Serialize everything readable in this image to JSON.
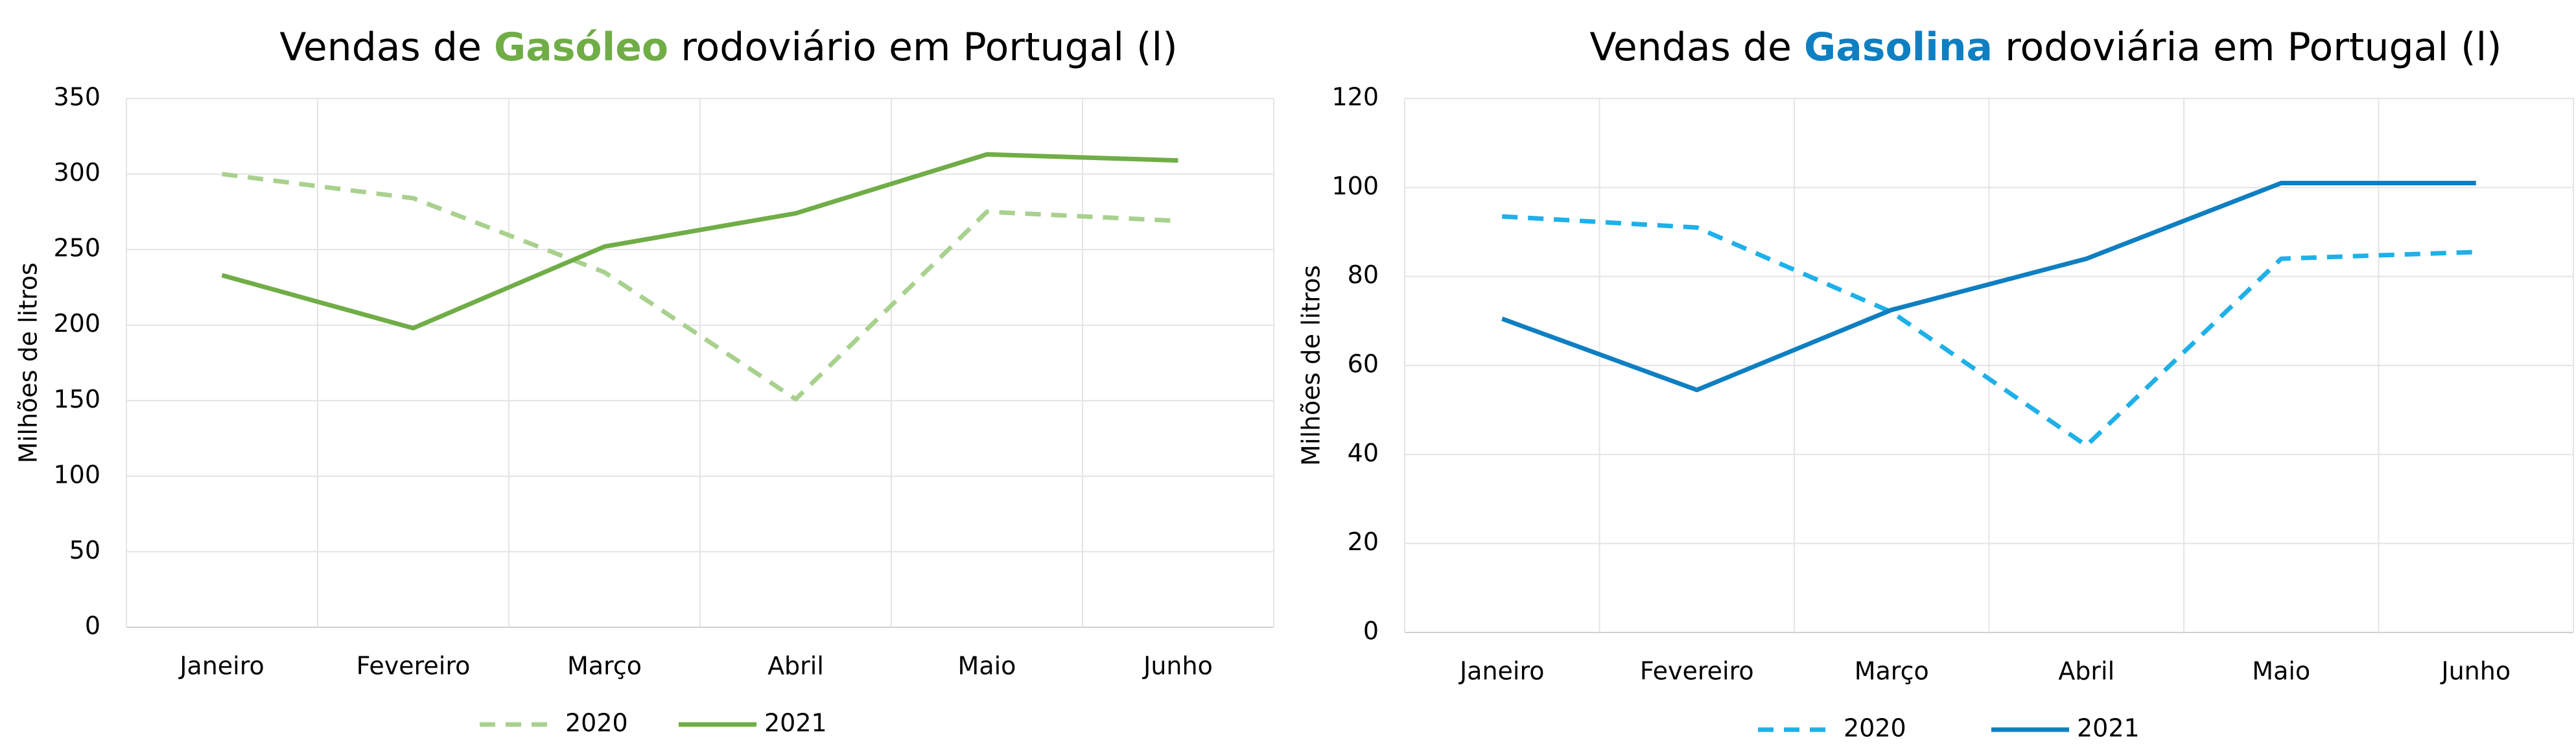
{
  "chart_data": [
    {
      "type": "line",
      "title": {
        "prefix": "Vendas de ",
        "highlight": "Gasóleo",
        "suffix": " rodoviário em Portugal (l)",
        "highlight_color": "#70ad47"
      },
      "y_label": "Milhões de litros",
      "categories": [
        "Janeiro",
        "Fevereiro",
        "Março",
        "Abril",
        "Maio",
        "Junho"
      ],
      "series": [
        {
          "name": "2020",
          "color": "#a9d18e",
          "style": "dashed",
          "values": [
            300,
            284,
            235,
            151,
            275,
            269
          ]
        },
        {
          "name": "2021",
          "color": "#70ad47",
          "style": "solid",
          "values": [
            233,
            198,
            252,
            274,
            313,
            309
          ]
        }
      ],
      "ylim": [
        0,
        350
      ],
      "yticks": [
        0,
        50,
        100,
        150,
        200,
        250,
        300,
        350
      ],
      "grid": true,
      "legend": "bottom"
    },
    {
      "type": "line",
      "title": {
        "prefix": "Vendas de ",
        "highlight": "Gasolina",
        "suffix": " rodoviária em Portugal (l)",
        "highlight_color": "#0f7fc1"
      },
      "y_label": "Milhões de litros",
      "categories": [
        "Janeiro",
        "Fevereiro",
        "Março",
        "Abril",
        "Maio",
        "Junho"
      ],
      "series": [
        {
          "name": "2020",
          "color": "#1fb0e8",
          "style": "dashed",
          "values": [
            93.5,
            91,
            72,
            42,
            84,
            85.5
          ]
        },
        {
          "name": "2021",
          "color": "#0f7fc1",
          "style": "solid",
          "values": [
            70.5,
            54.5,
            72.5,
            84,
            101,
            101
          ]
        }
      ],
      "ylim": [
        0,
        120
      ],
      "yticks": [
        0,
        20,
        40,
        60,
        80,
        100,
        120
      ],
      "grid": true,
      "legend": "bottom"
    }
  ]
}
